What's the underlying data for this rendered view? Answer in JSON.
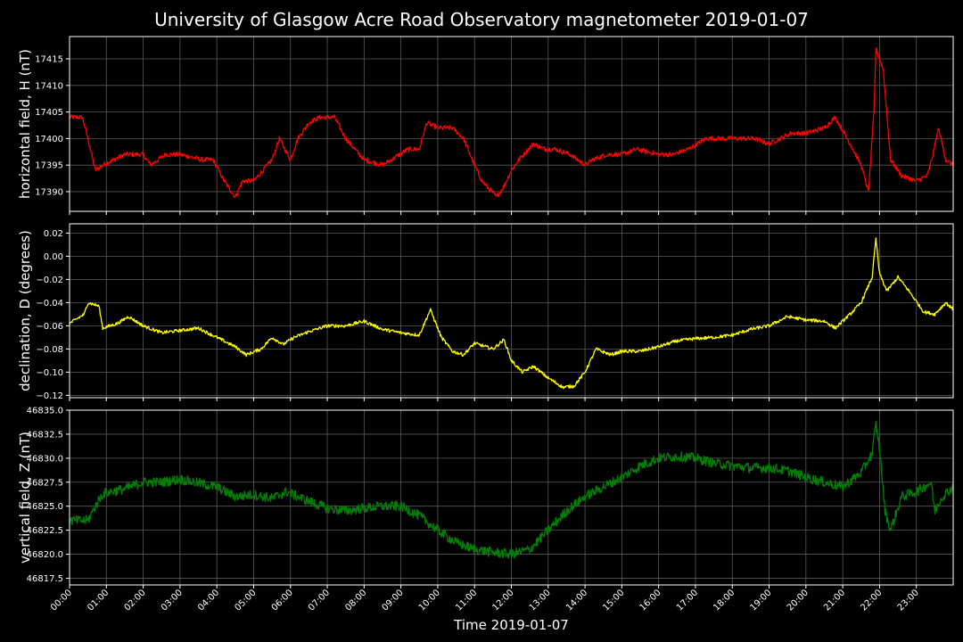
{
  "title": "University of Glasgow Acre Road Observatory magnetometer 2019-01-07",
  "colors": {
    "background": "#000000",
    "grid": "#5a5a5a",
    "axes": "#ffffff",
    "text": "#ffffff"
  },
  "chart_data": [
    {
      "type": "line",
      "ylabel": "horizontal field, H (nT)",
      "ylim": [
        17386.3,
        17419.2
      ],
      "yticks": [
        17390,
        17395,
        17400,
        17405,
        17410,
        17415
      ],
      "ytick_labels": [
        "17390",
        "17395",
        "17400",
        "17405",
        "17410",
        "17415"
      ],
      "grid": true,
      "color": "#ff0000",
      "noise": 0.9,
      "x_hours": [
        0,
        0.35,
        0.5,
        0.7,
        0.9,
        1.5,
        2,
        2.2,
        2.6,
        3,
        3.6,
        3.9,
        4.2,
        4.5,
        4.7,
        5.0,
        5.5,
        5.7,
        6.0,
        6.2,
        6.5,
        6.8,
        7.2,
        7.5,
        8.0,
        8.5,
        9.2,
        9.5,
        9.7,
        10.0,
        10.4,
        10.7,
        11.0,
        11.2,
        11.6,
        11.8,
        12.0,
        12.2,
        12.6,
        12.9,
        13.2,
        13.6,
        14.0,
        14.2,
        14.6,
        15.0,
        15.4,
        16.0,
        16.4,
        16.8,
        17.3,
        18.0,
        18.6,
        19.0,
        19.6,
        20.0,
        20.5,
        20.8,
        21.2,
        21.5,
        21.7,
        21.85,
        21.9,
        22.1,
        22.3,
        22.6,
        23.0,
        23.3,
        23.45,
        23.6,
        23.8,
        24.0
      ],
      "values": [
        17404,
        17404,
        17400,
        17394,
        17395,
        17397,
        17397,
        17395,
        17397,
        17397,
        17396,
        17396,
        17392,
        17389,
        17392,
        17392,
        17396,
        17400,
        17396,
        17400,
        17403,
        17404,
        17404,
        17400,
        17396,
        17395,
        17398,
        17398,
        17403,
        17402,
        17402,
        17400,
        17395,
        17392,
        17389,
        17391,
        17394,
        17396,
        17399,
        17398,
        17398,
        17397,
        17395,
        17396,
        17397,
        17397,
        17398,
        17397,
        17397,
        17398,
        17400,
        17400,
        17400,
        17399,
        17401,
        17401,
        17402,
        17404,
        17399,
        17395,
        17390,
        17405,
        17417,
        17413,
        17396,
        17393,
        17392,
        17393,
        17397,
        17402,
        17396,
        17395
      ]
    },
    {
      "type": "line",
      "ylabel": "declination, D (degrees)",
      "ylim": [
        -0.122,
        0.028
      ],
      "yticks": [
        -0.12,
        -0.1,
        -0.08,
        -0.06,
        -0.04,
        -0.02,
        0.0,
        0.02
      ],
      "ytick_labels": [
        "−0.12",
        "−0.10",
        "−0.08",
        "−0.06",
        "−0.04",
        "−0.02",
        "0.00",
        "0.02"
      ],
      "grid": true,
      "color": "#ffff00",
      "noise": 0.0028,
      "x_hours": [
        0,
        0.4,
        0.5,
        0.8,
        0.9,
        1.3,
        1.6,
        2.0,
        2.5,
        3.0,
        3.5,
        4.0,
        4.5,
        4.8,
        5.2,
        5.5,
        5.8,
        6.1,
        6.5,
        7.0,
        7.5,
        8.0,
        8.5,
        9.0,
        9.5,
        9.8,
        10.1,
        10.4,
        10.7,
        11.0,
        11.5,
        11.8,
        12.0,
        12.3,
        12.6,
        13.0,
        13.4,
        13.7,
        14.0,
        14.3,
        14.7,
        15.0,
        15.5,
        16.0,
        16.5,
        17.0,
        17.5,
        18.0,
        18.5,
        19.0,
        19.5,
        20.0,
        20.5,
        20.8,
        21.2,
        21.5,
        21.8,
        21.9,
        22.0,
        22.2,
        22.5,
        22.8,
        23.2,
        23.5,
        23.8,
        24.0
      ],
      "values": [
        -0.058,
        -0.05,
        -0.04,
        -0.043,
        -0.062,
        -0.058,
        -0.052,
        -0.06,
        -0.066,
        -0.064,
        -0.062,
        -0.07,
        -0.078,
        -0.085,
        -0.08,
        -0.07,
        -0.076,
        -0.07,
        -0.065,
        -0.06,
        -0.06,
        -0.056,
        -0.063,
        -0.066,
        -0.068,
        -0.046,
        -0.07,
        -0.082,
        -0.085,
        -0.075,
        -0.08,
        -0.072,
        -0.09,
        -0.1,
        -0.095,
        -0.105,
        -0.113,
        -0.112,
        -0.1,
        -0.08,
        -0.085,
        -0.082,
        -0.082,
        -0.078,
        -0.073,
        -0.071,
        -0.07,
        -0.068,
        -0.063,
        -0.06,
        -0.052,
        -0.055,
        -0.056,
        -0.062,
        -0.05,
        -0.04,
        -0.018,
        0.015,
        -0.015,
        -0.03,
        -0.018,
        -0.03,
        -0.048,
        -0.05,
        -0.04,
        -0.046
      ]
    },
    {
      "type": "line",
      "ylabel": "vertical field, Z (nT)",
      "ylim": [
        46816.8,
        46835.0
      ],
      "yticks": [
        46817.5,
        46820.0,
        46822.5,
        46825.0,
        46827.5,
        46830.0,
        46832.5,
        46835.0
      ],
      "ytick_labels": [
        "46817.5",
        "46820.0",
        "46822.5",
        "46825.0",
        "46827.5",
        "46830.0",
        "46832.5",
        "46835.0"
      ],
      "grid": true,
      "color": "#008000",
      "noise": 1.05,
      "x_hours": [
        0,
        0.5,
        0.7,
        0.9,
        1.5,
        2.0,
        2.5,
        3.0,
        3.5,
        4.0,
        4.5,
        5.0,
        5.5,
        5.9,
        6.5,
        7.0,
        7.5,
        8.0,
        8.5,
        9.0,
        9.5,
        10.0,
        10.5,
        11.0,
        11.5,
        12.0,
        12.5,
        13.0,
        13.5,
        14.0,
        14.5,
        15.0,
        15.5,
        16.0,
        16.5,
        17.0,
        17.5,
        18.0,
        18.5,
        19.0,
        19.5,
        20.0,
        20.5,
        21.0,
        21.5,
        21.8,
        21.9,
        22.0,
        22.15,
        22.3,
        22.6,
        23.0,
        23.4,
        23.5,
        23.7,
        24.0
      ],
      "values": [
        46823.5,
        46823.5,
        46825.0,
        46826.3,
        46826.8,
        46827.5,
        46827.5,
        46827.8,
        46827.4,
        46827.0,
        46826.0,
        46826.2,
        46825.8,
        46826.5,
        46825.5,
        46824.8,
        46824.5,
        46824.8,
        46825.0,
        46825.0,
        46824.0,
        46822.5,
        46821.2,
        46820.5,
        46820.2,
        46820.0,
        46820.5,
        46822.5,
        46824.5,
        46826.0,
        46827.0,
        46828.0,
        46829.2,
        46830.0,
        46830.2,
        46830.0,
        46829.5,
        46829.2,
        46829.0,
        46829.0,
        46828.7,
        46828.0,
        46827.5,
        46827.0,
        46828.5,
        46830.5,
        46833.5,
        46831.0,
        46824.5,
        46822.5,
        46826.0,
        46826.5,
        46827.5,
        46824.5,
        46826.0,
        46827.0
      ]
    }
  ],
  "x_axis": {
    "xlabel": "Time 2019-01-07",
    "xlim_hours": [
      0,
      24
    ],
    "tick_labels": [
      "00:00",
      "01:00",
      "02:00",
      "03:00",
      "04:00",
      "05:00",
      "06:00",
      "07:00",
      "08:00",
      "09:00",
      "10:00",
      "11:00",
      "12:00",
      "13:00",
      "14:00",
      "15:00",
      "16:00",
      "17:00",
      "18:00",
      "19:00",
      "20:00",
      "21:00",
      "22:00",
      "23:00"
    ]
  }
}
